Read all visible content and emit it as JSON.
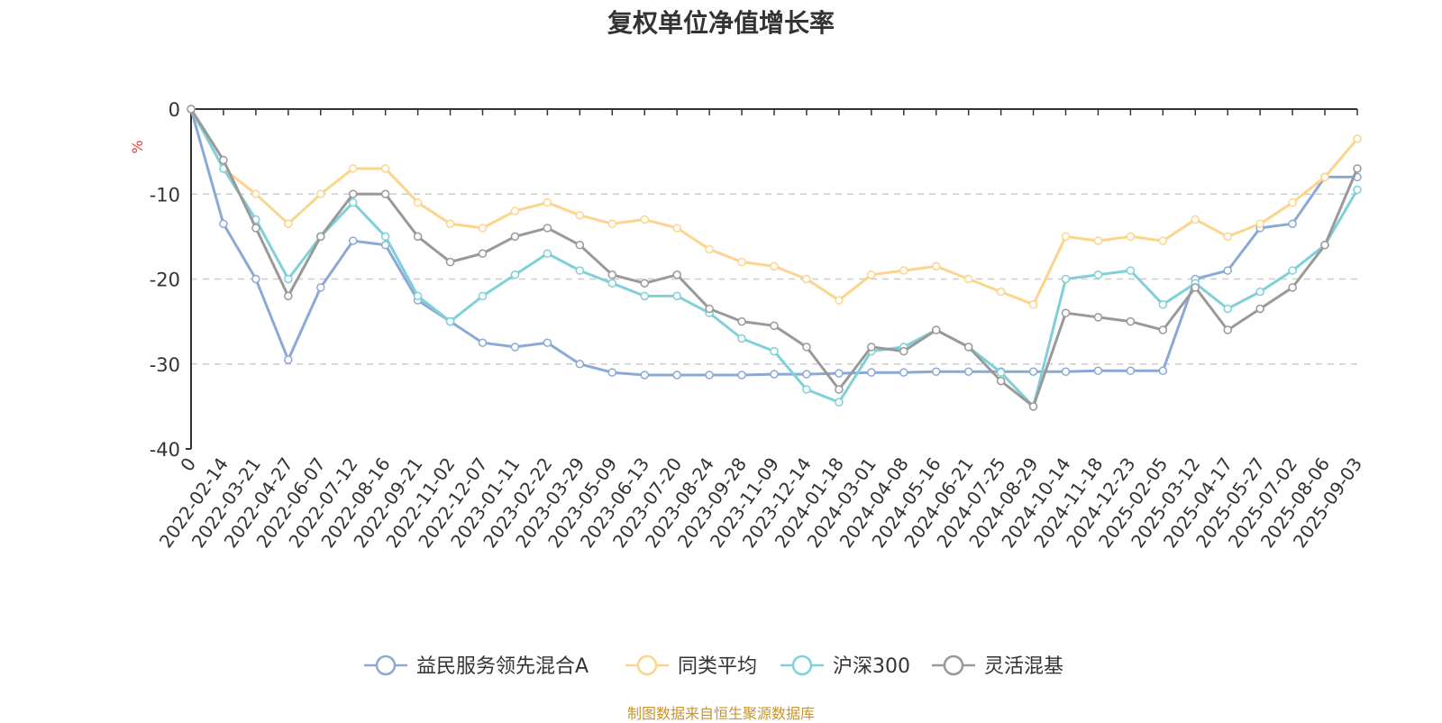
{
  "chart_data": {
    "type": "line",
    "title": "复权单位净值增长率",
    "ylabel": "%",
    "ylim": [
      -40,
      0
    ],
    "yticks": [
      0,
      -10,
      -20,
      -30,
      -40
    ],
    "grid": true,
    "legend_position": "bottom-center",
    "x": [
      "0",
      "2022-02-14",
      "2022-03-21",
      "2022-04-27",
      "2022-06-07",
      "2022-07-12",
      "2022-08-16",
      "2022-09-21",
      "2022-11-02",
      "2022-12-07",
      "2023-01-11",
      "2023-02-22",
      "2023-03-29",
      "2023-05-09",
      "2023-06-13",
      "2023-07-20",
      "2023-08-24",
      "2023-09-28",
      "2023-11-09",
      "2023-12-14",
      "2024-01-18",
      "2024-03-01",
      "2024-04-08",
      "2024-05-16",
      "2024-06-21",
      "2024-07-25",
      "2024-08-29",
      "2024-10-14",
      "2024-11-18",
      "2024-12-23",
      "2025-02-05",
      "2025-03-12",
      "2025-04-17",
      "2025-05-27",
      "2025-07-02",
      "2025-08-06",
      "2025-09-03"
    ],
    "series": [
      {
        "name": "益民服务领先混合A",
        "color": "#8aa9d6",
        "values": [
          0,
          -13.5,
          -20,
          -29.5,
          -21,
          -15.5,
          -16,
          -22.5,
          -25,
          -27.5,
          -28,
          -27.5,
          -30,
          -31,
          -31.3,
          -31.3,
          -31.3,
          -31.3,
          -31.2,
          -31.2,
          -31.1,
          -31,
          -31,
          -30.9,
          -30.9,
          -30.9,
          -30.9,
          -30.9,
          -30.8,
          -30.8,
          -30.8,
          -20,
          -19,
          -14,
          -13.5,
          -8,
          -8
        ]
      },
      {
        "name": "同类平均",
        "color": "#fcd48b",
        "values": [
          0,
          -7,
          -10,
          -13.5,
          -10,
          -7,
          -7,
          -11,
          -13.5,
          -14,
          -12,
          -11,
          -12.5,
          -13.5,
          -13,
          -14,
          -16.5,
          -18,
          -18.5,
          -20,
          -22.5,
          -19.5,
          -19,
          -18.5,
          -20,
          -21.5,
          -23,
          -15,
          -15.5,
          -15,
          -15.5,
          -13,
          -15,
          -13.5,
          -11,
          -8,
          -3.5
        ]
      },
      {
        "name": "沪深300",
        "color": "#7fd0d8",
        "values": [
          0,
          -7,
          -13,
          -20,
          -15,
          -11,
          -15,
          -22,
          -25,
          -22,
          -19.5,
          -17,
          -19,
          -20.5,
          -22,
          -22,
          -24,
          -27,
          -28.5,
          -33,
          -34.5,
          -28.5,
          -28,
          -26,
          -28,
          -31,
          -35,
          -20,
          -19.5,
          -19,
          -23,
          -20.5,
          -23.5,
          -21.5,
          -19,
          -16,
          -9.5
        ]
      },
      {
        "name": "灵活混基",
        "color": "#999999",
        "values": [
          0,
          -6,
          -14,
          -22,
          -15,
          -10,
          -10,
          -15,
          -18,
          -17,
          -15,
          -14,
          -16,
          -19.5,
          -20.5,
          -19.5,
          -23.5,
          -25,
          -25.5,
          -28,
          -33,
          -28,
          -28.5,
          -26,
          -28,
          -32,
          -35,
          -24,
          -24.5,
          -25,
          -26,
          -21,
          -26,
          -23.5,
          -21,
          -16,
          -7
        ]
      }
    ]
  },
  "source": "制图数据来自恒生聚源数据库"
}
